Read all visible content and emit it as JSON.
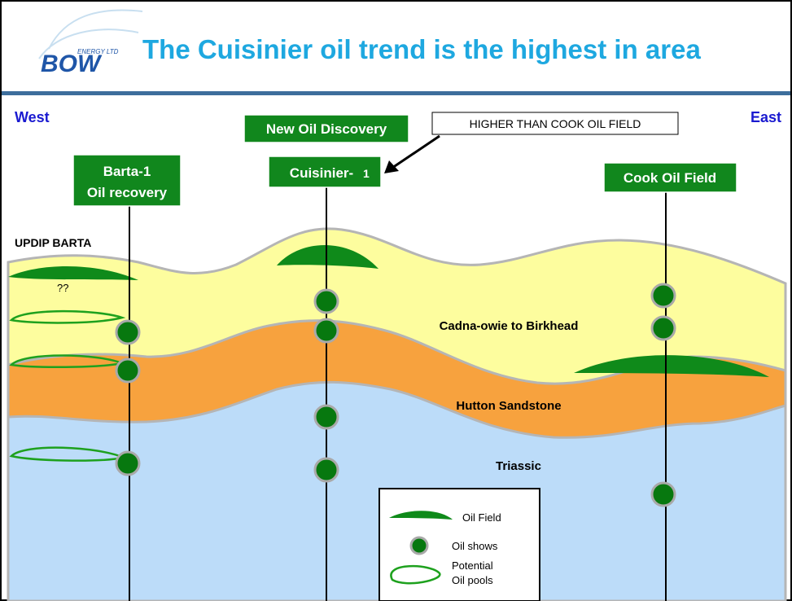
{
  "logo": {
    "name": "BOW",
    "tagline": "ENERGY LTD"
  },
  "header": {
    "title": "The Cuisinier oil trend is the highest in area"
  },
  "directions": {
    "west": "West",
    "east": "East"
  },
  "wells": [
    {
      "name": "Barta-1",
      "note": "Oil recovery"
    },
    {
      "name": "Cuisinier-",
      "suffix": "1",
      "badge": "New Oil Discovery"
    },
    {
      "name": "Cook Oil Field"
    }
  ],
  "callout": "HIGHER THAN COOK OIL FIELD",
  "annotations": {
    "updip": "UPDIP BARTA",
    "question": "??"
  },
  "layers": [
    "Cadna-owie to Birkhead",
    "Hutton Sandstone",
    "Triassic"
  ],
  "legend": {
    "oil_field": "Oil Field",
    "oil_shows": "Oil shows",
    "potential_1": "Potential",
    "potential_2": "Oil pools"
  }
}
